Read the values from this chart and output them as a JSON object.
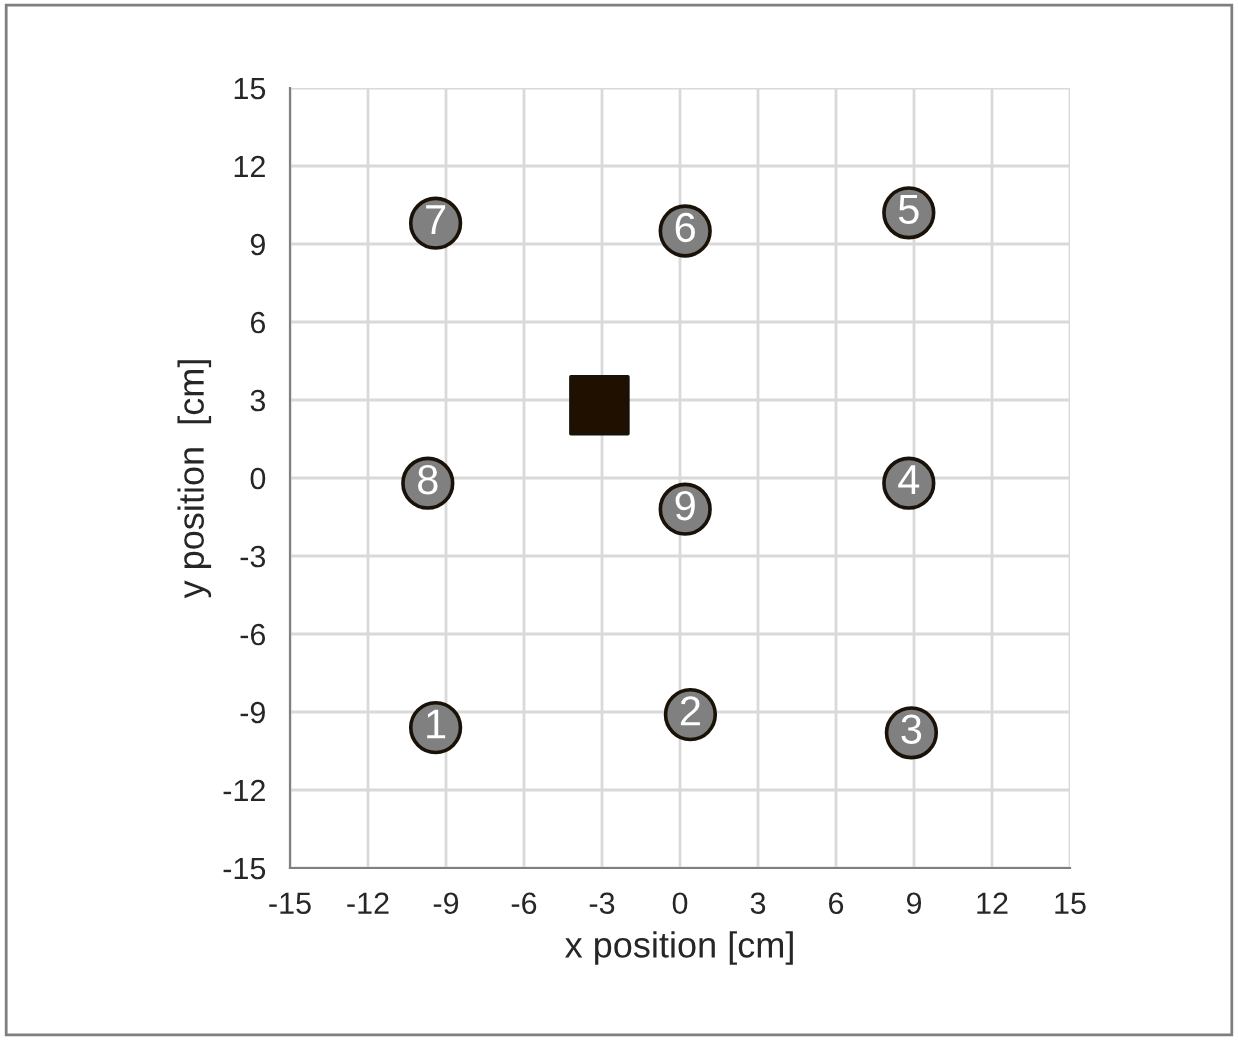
{
  "chart_data": {
    "type": "scatter",
    "xlabel": "x position [cm]",
    "ylabel": "y position  [cm]",
    "series": [
      {
        "marker": "circle",
        "color": "#808080",
        "x": [
          -9.4,
          0.4,
          8.9,
          8.8,
          8.8,
          0.2,
          -9.4,
          -9.7,
          0.2
        ],
        "values": [
          -9.6,
          -9.1,
          -9.8,
          -0.2,
          10.2,
          9.5,
          9.8,
          -0.2,
          -1.2
        ]
      },
      {
        "marker": "square",
        "color": "#1f1000",
        "x": [
          -3.1
        ],
        "values": [
          2.8
        ]
      }
    ],
    "annotations": [
      {
        "text": "1",
        "x": -9.4,
        "y": -9.6
      },
      {
        "text": "2",
        "x": 0.4,
        "y": -9.1
      },
      {
        "text": "3",
        "x": 8.9,
        "y": -9.8
      },
      {
        "text": "4",
        "x": 8.8,
        "y": -0.2
      },
      {
        "text": "5",
        "x": 8.8,
        "y": 10.2
      },
      {
        "text": "6",
        "x": 0.2,
        "y": 9.5
      },
      {
        "text": "7",
        "x": -9.4,
        "y": 9.8
      },
      {
        "text": "8",
        "x": -9.7,
        "y": -0.2
      },
      {
        "text": "9",
        "x": 0.2,
        "y": -1.2
      }
    ],
    "xlim": [
      -15,
      15
    ],
    "ylim": [
      -15,
      15
    ],
    "xticks": [
      -15,
      -12,
      -9,
      -6,
      -3,
      0,
      3,
      6,
      9,
      12,
      15
    ],
    "yticks": [
      -15,
      -12,
      -9,
      -6,
      -3,
      0,
      3,
      6,
      9,
      12,
      15
    ],
    "grid": true
  }
}
